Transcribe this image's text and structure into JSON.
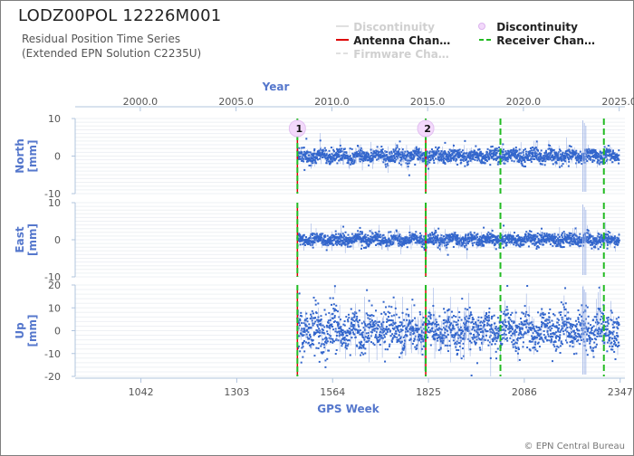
{
  "title": "LODZ00POL 12226M001",
  "subtitle_line1": "Residual Position Time Series",
  "subtitle_line2": "(Extended EPN Solution C2235U)",
  "credit": "© EPN Central Bureau",
  "legend": [
    {
      "label": "Discontinuity",
      "style": "line",
      "color": "#d8d8d8",
      "dimmed": true
    },
    {
      "label": "Discontinuity",
      "style": "circle",
      "color": "#e8c6f2",
      "dimmed": false
    },
    {
      "label": "Antenna Chan…",
      "style": "line",
      "color": "#dd0000",
      "dimmed": false
    },
    {
      "label": "Receiver Chan…",
      "style": "dashed",
      "color": "#22bb22",
      "dimmed": false
    },
    {
      "label": "Firmware Cha…",
      "style": "dashed",
      "color": "#d8d8d8",
      "dimmed": true
    }
  ],
  "chart_data": {
    "type": "scatter",
    "top_axis": {
      "label": "Year",
      "ticks": [
        "2000.0",
        "2005.0",
        "2010.0",
        "2015.0",
        "2020.0",
        "2025.0"
      ],
      "range": [
        1996.6,
        2025.3
      ]
    },
    "bottom_axis": {
      "label": "GPS Week",
      "ticks": [
        "1042",
        "1303",
        "1564",
        "1825",
        "2086",
        "2347"
      ],
      "range": [
        863,
        2360
      ]
    },
    "panels": [
      {
        "name": "North",
        "ylabel": "North\n[mm]",
        "ylim": [
          -10,
          10
        ],
        "yticks": [
          "10",
          "0",
          "-10"
        ],
        "noise_sd_mm": 0.9
      },
      {
        "name": "East",
        "ylabel": "East\n[mm]",
        "ylim": [
          -10,
          10
        ],
        "yticks": [
          "10",
          "0",
          "-10"
        ],
        "noise_sd_mm": 0.8
      },
      {
        "name": "Up",
        "ylabel": "Up\n[mm]",
        "ylim": [
          -20,
          20
        ],
        "yticks": [
          "20",
          "10",
          "0",
          "-10",
          "-20"
        ],
        "noise_sd_mm": 4.0
      }
    ],
    "series": {
      "data_start_year": 2008.2,
      "data_end_year": 2025.0,
      "color": "#3366cc"
    },
    "antenna_changes_year": [
      2008.2,
      2014.9
    ],
    "receiver_changes_year": [
      2018.8,
      2024.2
    ],
    "discontinuities": [
      {
        "label": "1",
        "year": 2008.2
      },
      {
        "label": "2",
        "year": 2014.9
      }
    ]
  }
}
